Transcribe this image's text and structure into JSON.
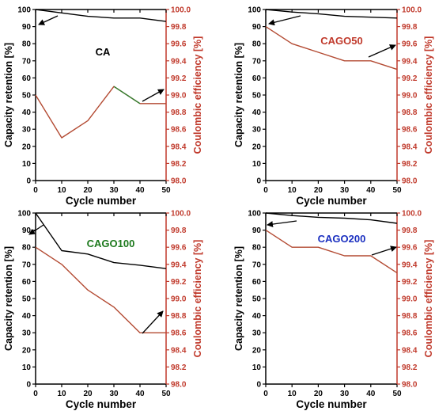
{
  "colors": {
    "axis": "#000000",
    "secondary": "#c0392b",
    "capacity_line": "#000000",
    "ce_line": "#b34a32",
    "ce_line_green": "#2f7f2f"
  },
  "chart_data": [
    {
      "type": "line",
      "title": "CA",
      "title_color": "#000000",
      "xlabel": "Cycle number",
      "ylabel": "Capacity retention [%]",
      "y2label": "Coulombic efficiency [%]",
      "xlim": [
        0,
        50
      ],
      "ylim": [
        0,
        100
      ],
      "y2lim": [
        98.0,
        100.0
      ],
      "xticks": [
        "0",
        "10",
        "20",
        "30",
        "40",
        "50"
      ],
      "yticks": [
        "0",
        "10",
        "20",
        "30",
        "40",
        "50",
        "60",
        "70",
        "80",
        "90",
        "100"
      ],
      "y2ticks": [
        "98.0",
        "98.2",
        "98.4",
        "98.6",
        "98.8",
        "99.0",
        "99.2",
        "99.4",
        "99.6",
        "99.8",
        "100.0"
      ],
      "series": [
        {
          "axis": "left",
          "color": "#000000",
          "x": [
            0,
            10,
            20,
            30,
            40,
            50
          ],
          "y": [
            100,
            98,
            96,
            95,
            95,
            93
          ]
        },
        {
          "axis": "right",
          "color": "#b34a32",
          "x": [
            0,
            10,
            20,
            30,
            40
          ],
          "y": [
            99.0,
            98.5,
            98.7,
            99.1,
            98.9
          ]
        },
        {
          "axis": "right",
          "color": "#2f7f2f",
          "x": [
            30,
            40
          ],
          "y": [
            99.1,
            98.9
          ]
        },
        {
          "axis": "right",
          "color": "#b34a32",
          "x": [
            40,
            50
          ],
          "y": [
            98.9,
            98.9
          ]
        }
      ]
    },
    {
      "type": "line",
      "title": "CAGO50",
      "title_color": "#c0392b",
      "xlabel": "Cycle number",
      "ylabel": "Capacity retention [%]",
      "y2label": "Coulombic efficiency [%]",
      "xlim": [
        0,
        50
      ],
      "ylim": [
        0,
        100
      ],
      "y2lim": [
        98.0,
        100.0
      ],
      "xticks": [
        "0",
        "10",
        "20",
        "30",
        "40",
        "50"
      ],
      "yticks": [
        "0",
        "10",
        "20",
        "30",
        "40",
        "50",
        "60",
        "70",
        "80",
        "90",
        "100"
      ],
      "y2ticks": [
        "98.0",
        "98.2",
        "98.4",
        "98.6",
        "98.8",
        "99.0",
        "99.2",
        "99.4",
        "99.6",
        "99.8",
        "100.0"
      ],
      "series": [
        {
          "axis": "left",
          "color": "#000000",
          "x": [
            0,
            10,
            20,
            30,
            40,
            50
          ],
          "y": [
            100,
            98.5,
            97.5,
            96,
            95.5,
            95
          ]
        },
        {
          "axis": "right",
          "color": "#b34a32",
          "x": [
            0,
            10,
            20,
            30,
            40,
            50
          ],
          "y": [
            99.8,
            99.6,
            99.5,
            99.4,
            99.4,
            99.3
          ]
        }
      ]
    },
    {
      "type": "line",
      "title": "CAGO100",
      "title_color": "#1e7a1e",
      "xlabel": "Cycle number",
      "ylabel": "Capacity retention [%]",
      "y2label": "Coulombic efficiency [%]",
      "xlim": [
        0,
        50
      ],
      "ylim": [
        0,
        100
      ],
      "y2lim": [
        98.0,
        100.0
      ],
      "xticks": [
        "0",
        "10",
        "20",
        "30",
        "40",
        "50"
      ],
      "yticks": [
        "0",
        "10",
        "20",
        "30",
        "40",
        "50",
        "60",
        "70",
        "80",
        "90",
        "100"
      ],
      "y2ticks": [
        "98.0",
        "98.2",
        "98.4",
        "98.6",
        "98.8",
        "99.0",
        "99.2",
        "99.4",
        "99.6",
        "99.8",
        "100.0"
      ],
      "series": [
        {
          "axis": "left",
          "color": "#000000",
          "x": [
            0,
            10,
            20,
            30,
            40,
            50
          ],
          "y": [
            100,
            78,
            76,
            71,
            69.5,
            67.5
          ]
        },
        {
          "axis": "right",
          "color": "#b34a32",
          "x": [
            0,
            10,
            20,
            30,
            40,
            50
          ],
          "y": [
            99.6,
            99.4,
            99.1,
            98.9,
            98.6,
            98.6
          ]
        }
      ]
    },
    {
      "type": "line",
      "title": "CAGO200",
      "title_color": "#1a2fc0",
      "xlabel": "Cycle number",
      "ylabel": "Capacity retention [%]",
      "y2label": "Coulombic efficiency [%]",
      "xlim": [
        0,
        50
      ],
      "ylim": [
        0,
        100
      ],
      "y2lim": [
        98.0,
        100.0
      ],
      "xticks": [
        "0",
        "10",
        "20",
        "30",
        "40",
        "50"
      ],
      "yticks": [
        "0",
        "10",
        "20",
        "30",
        "40",
        "50",
        "60",
        "70",
        "80",
        "90",
        "100"
      ],
      "y2ticks": [
        "98.0",
        "98.2",
        "98.4",
        "98.6",
        "98.8",
        "99.0",
        "99.2",
        "99.4",
        "99.6",
        "99.8",
        "100.0"
      ],
      "series": [
        {
          "axis": "left",
          "color": "#000000",
          "x": [
            0,
            10,
            20,
            30,
            40,
            50
          ],
          "y": [
            100,
            98.5,
            97.5,
            97,
            96,
            94
          ]
        },
        {
          "axis": "right",
          "color": "#b34a32",
          "x": [
            0,
            10,
            20,
            30,
            40,
            50
          ],
          "y": [
            99.8,
            99.6,
            99.6,
            99.5,
            99.5,
            99.3
          ]
        }
      ]
    }
  ]
}
